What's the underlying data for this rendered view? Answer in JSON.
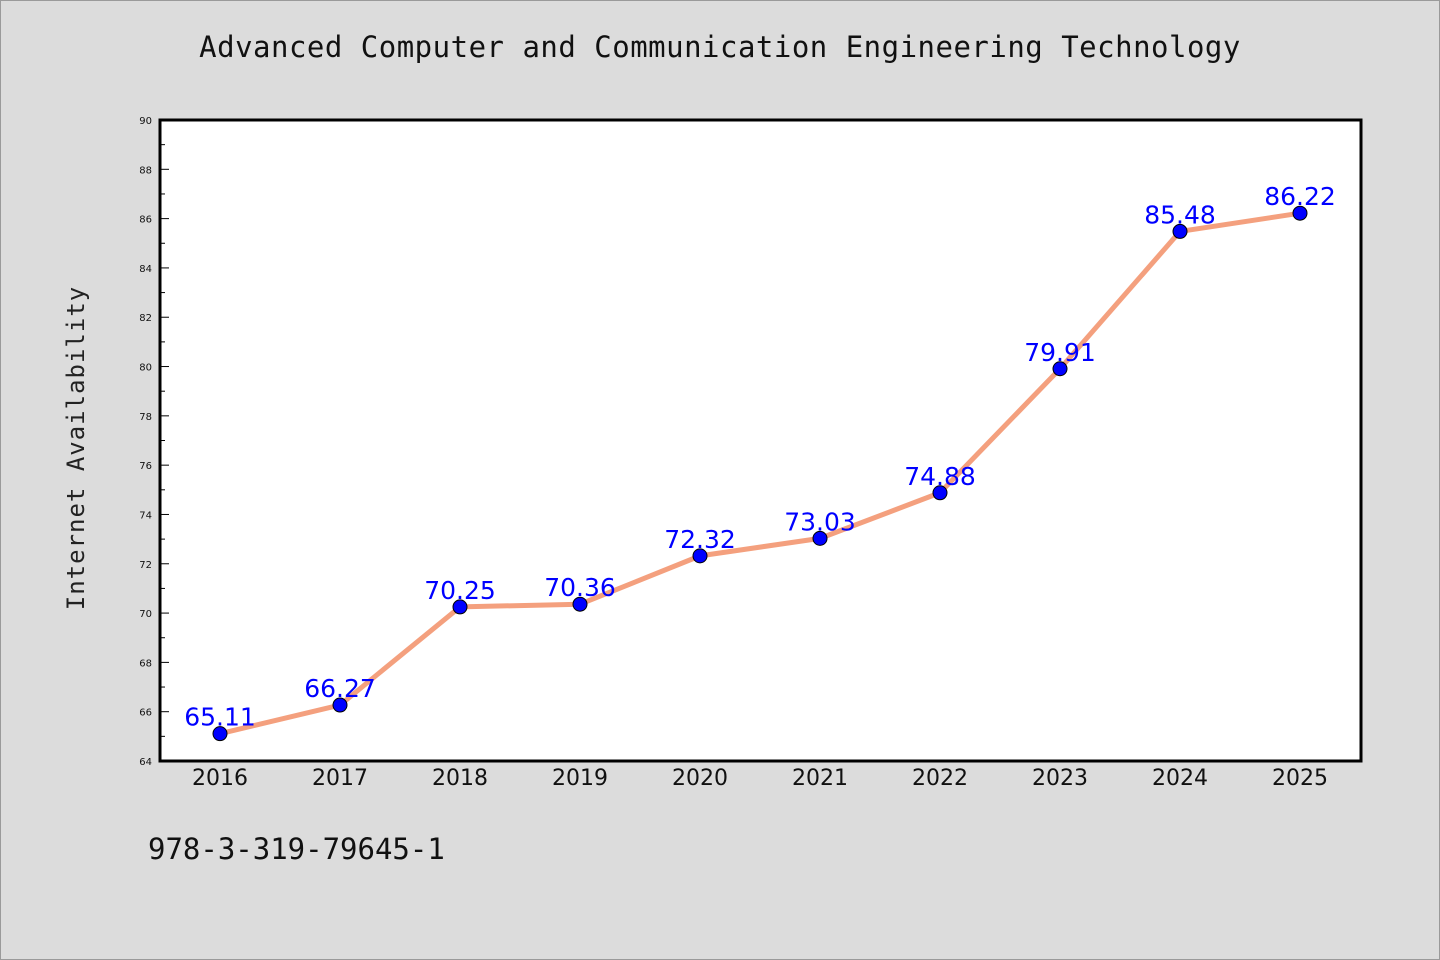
{
  "title": "Advanced Computer and Communication Engineering Technology",
  "footer_text": "978-3-319-79645-1",
  "colors": {
    "background": "#dcdcdc",
    "plot_background": "#ffffff",
    "line": "#f4a07e",
    "marker": "#0000ff",
    "data_label": "#0000ff"
  },
  "chart_data": {
    "type": "line",
    "title": "Advanced Computer and Communication Engineering Technology",
    "xlabel": "",
    "ylabel": "Internet Availability",
    "categories": [
      "2016",
      "2017",
      "2018",
      "2019",
      "2020",
      "2021",
      "2022",
      "2023",
      "2024",
      "2025"
    ],
    "series": [
      {
        "values": [
          65.11,
          66.27,
          70.25,
          70.36,
          72.32,
          73.03,
          74.88,
          79.91,
          85.48,
          86.22
        ],
        "labels": [
          "65.11",
          "66.27",
          "70.25",
          "70.36",
          "72.32",
          "73.03",
          "74.88",
          "79.91",
          "85.48",
          "86.22"
        ]
      }
    ],
    "ylim": [
      64,
      90
    ],
    "yticks": [
      "64",
      "66",
      "68",
      "70",
      "72",
      "74",
      "76",
      "78",
      "80",
      "82",
      "84",
      "86",
      "88",
      "90"
    ],
    "grid": false,
    "legend": "none"
  }
}
